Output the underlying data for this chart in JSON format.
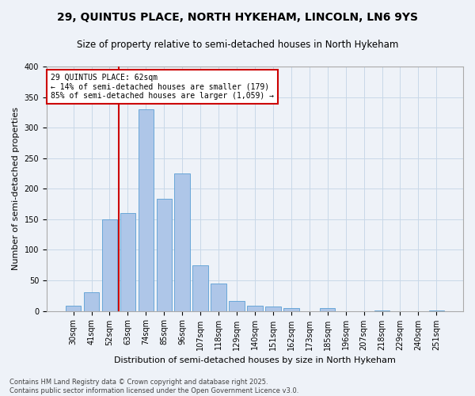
{
  "title": "29, QUINTUS PLACE, NORTH HYKEHAM, LINCOLN, LN6 9YS",
  "subtitle": "Size of property relative to semi-detached houses in North Hykeham",
  "xlabel": "Distribution of semi-detached houses by size in North Hykeham",
  "ylabel": "Number of semi-detached properties",
  "categories": [
    "30sqm",
    "41sqm",
    "52sqm",
    "63sqm",
    "74sqm",
    "85sqm",
    "96sqm",
    "107sqm",
    "118sqm",
    "129sqm",
    "140sqm",
    "151sqm",
    "162sqm",
    "173sqm",
    "185sqm",
    "196sqm",
    "207sqm",
    "218sqm",
    "229sqm",
    "240sqm",
    "251sqm"
  ],
  "values": [
    8,
    30,
    150,
    160,
    330,
    183,
    225,
    74,
    45,
    16,
    8,
    7,
    5,
    0,
    4,
    0,
    0,
    1,
    0,
    0,
    1
  ],
  "bar_color": "#aec6e8",
  "bar_edge_color": "#5a9fd4",
  "grid_color": "#c8d8e8",
  "background_color": "#eef2f8",
  "vline_color": "#cc0000",
  "vline_index": 3,
  "annotation_title": "29 QUINTUS PLACE: 62sqm",
  "annotation_line1": "← 14% of semi-detached houses are smaller (179)",
  "annotation_line2": "85% of semi-detached houses are larger (1,059) →",
  "annotation_box_color": "#ffffff",
  "annotation_box_edge": "#cc0000",
  "title_fontsize": 10,
  "subtitle_fontsize": 8.5,
  "axis_label_fontsize": 8,
  "tick_fontsize": 7,
  "footer": "Contains HM Land Registry data © Crown copyright and database right 2025.\nContains public sector information licensed under the Open Government Licence v3.0.",
  "ylim": [
    0,
    400
  ],
  "yticks": [
    0,
    50,
    100,
    150,
    200,
    250,
    300,
    350,
    400
  ]
}
